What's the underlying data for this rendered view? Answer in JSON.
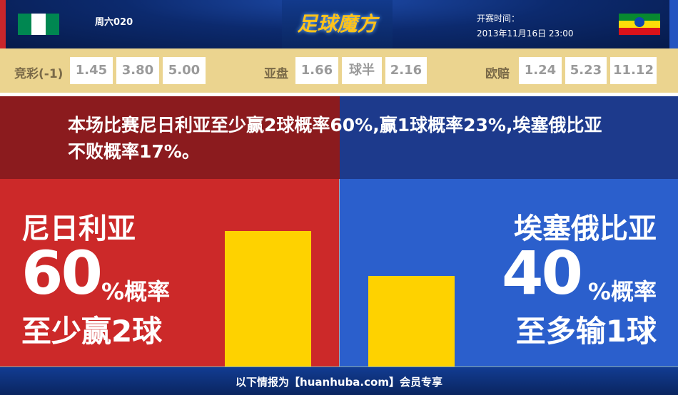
{
  "header": {
    "match_no": "周六020",
    "logo_text": "足球魔方",
    "kickoff_label": "开赛时间：",
    "kickoff_time": "2013年11月16日 23:00",
    "home_flag": "nigeria-flag",
    "away_flag": "ethiopia-flag"
  },
  "odds": {
    "jingcai": {
      "label": "竞彩(-1)",
      "values": [
        "1.45",
        "3.80",
        "5.00"
      ]
    },
    "asian": {
      "label": "亚盘",
      "values": [
        "1.66",
        "球半",
        "2.16"
      ]
    },
    "euro": {
      "label": "欧赔",
      "values": [
        "1.24",
        "5.23",
        "11.12"
      ]
    }
  },
  "summary": "本场比赛尼日利亚至少赢2球概率60%,赢1球概率23%,埃塞俄比亚不败概率17%。",
  "home": {
    "name": "尼日利亚",
    "percent": "60",
    "unit": "%概率",
    "desc": "至少赢2球",
    "value": 60
  },
  "away": {
    "name": "埃塞俄比亚",
    "percent": "40",
    "unit": "%概率",
    "desc": "至多输1球",
    "value": 40
  },
  "colors": {
    "home": "#cc2929",
    "away": "#2b5fcc",
    "bar": "#fed200",
    "odds_bg": "#ebd48f"
  },
  "footer": "以下情报为【huanhuba.com】会员专享"
}
